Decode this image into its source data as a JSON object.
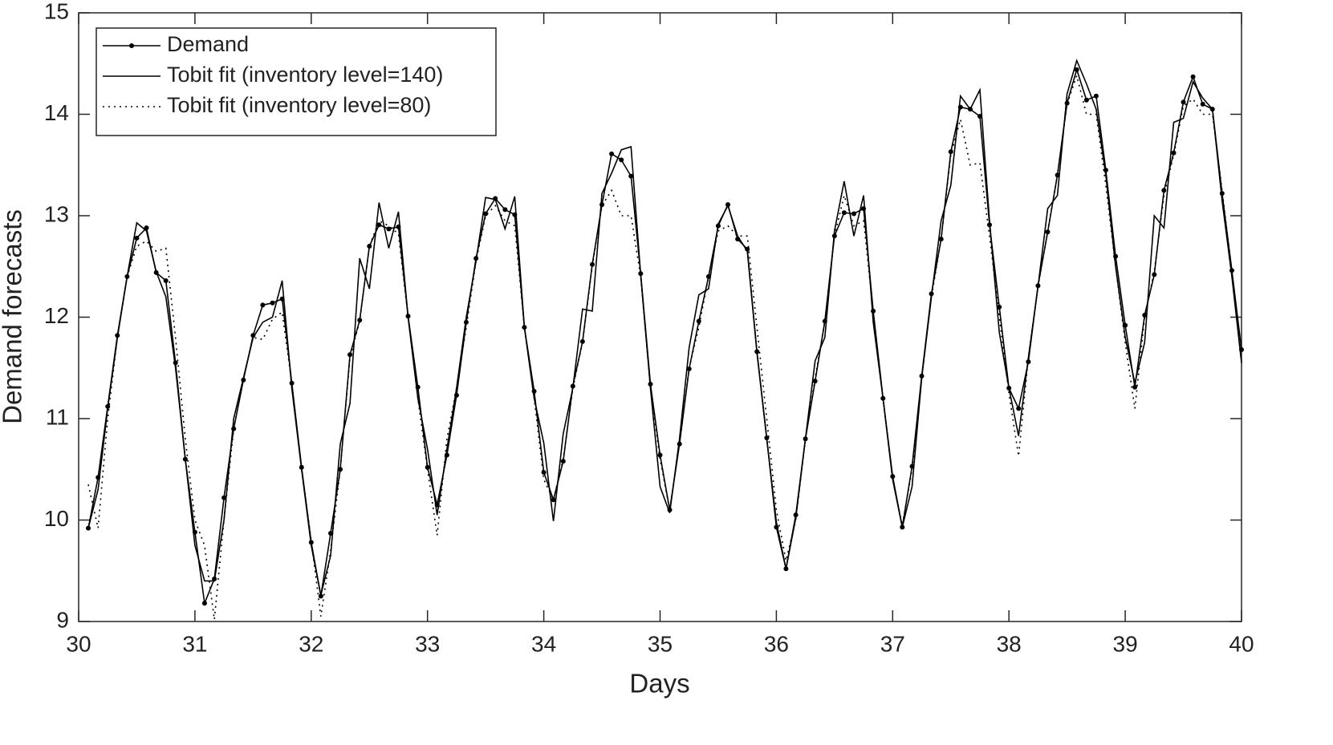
{
  "chart_data": {
    "type": "line",
    "x_label": "Days",
    "y_label": "Demand forecasts",
    "x": [
      30.083,
      30.167,
      30.25,
      30.333,
      30.417,
      30.5,
      30.583,
      30.667,
      30.75,
      30.833,
      30.917,
      31,
      31.083,
      31.167,
      31.25,
      31.333,
      31.417,
      31.5,
      31.583,
      31.667,
      31.75,
      31.833,
      31.917,
      32,
      32.083,
      32.167,
      32.25,
      32.333,
      32.417,
      32.5,
      32.583,
      32.667,
      32.75,
      32.833,
      32.917,
      33,
      33.083,
      33.167,
      33.25,
      33.333,
      33.417,
      33.5,
      33.583,
      33.667,
      33.75,
      33.833,
      33.917,
      34,
      34.083,
      34.167,
      34.25,
      34.333,
      34.417,
      34.5,
      34.583,
      34.667,
      34.75,
      34.833,
      34.917,
      35,
      35.083,
      35.167,
      35.25,
      35.333,
      35.417,
      35.5,
      35.583,
      35.667,
      35.75,
      35.833,
      35.917,
      36,
      36.083,
      36.167,
      36.25,
      36.333,
      36.417,
      36.5,
      36.583,
      36.667,
      36.75,
      36.833,
      36.917,
      37,
      37.083,
      37.167,
      37.25,
      37.333,
      37.417,
      37.5,
      37.583,
      37.667,
      37.75,
      37.833,
      37.917,
      38,
      38.083,
      38.167,
      38.25,
      38.333,
      38.417,
      38.5,
      38.583,
      38.667,
      38.75,
      38.833,
      38.917,
      39,
      39.083,
      39.167,
      39.25,
      39.333,
      39.417,
      39.5,
      39.583,
      39.667,
      39.75,
      39.833,
      39.917,
      40
    ],
    "series": [
      {
        "name": "Demand",
        "color": "#000000",
        "line_style": "solid",
        "marker": "dot",
        "values": [
          9.92,
          10.42,
          11.12,
          11.82,
          12.4,
          12.78,
          12.88,
          12.44,
          12.36,
          11.55,
          10.6,
          9.88,
          9.18,
          9.42,
          10.22,
          10.9,
          11.38,
          11.82,
          12.12,
          12.14,
          12.18,
          11.35,
          10.52,
          9.78,
          9.25,
          9.87,
          10.5,
          11.63,
          11.97,
          12.7,
          12.91,
          12.87,
          12.89,
          12.01,
          11.31,
          10.52,
          10.15,
          10.64,
          11.23,
          11.95,
          12.58,
          13.02,
          13.17,
          13.06,
          13.01,
          11.9,
          11.27,
          10.47,
          10.2,
          10.58,
          11.32,
          11.76,
          12.52,
          13.11,
          13.61,
          13.55,
          13.39,
          12.43,
          11.34,
          10.64,
          10.1,
          10.75,
          11.49,
          11.96,
          12.4,
          12.9,
          13.11,
          12.77,
          12.67,
          11.66,
          10.81,
          9.93,
          9.52,
          10.05,
          10.8,
          11.37,
          11.96,
          12.8,
          13.03,
          13.02,
          13.07,
          12.06,
          11.2,
          10.43,
          9.93,
          10.53,
          11.42,
          12.23,
          12.77,
          13.63,
          14.07,
          14.05,
          13.98,
          12.91,
          12.1,
          11.3,
          11.1,
          11.56,
          12.31,
          12.84,
          13.4,
          14.11,
          14.44,
          14.14,
          14.18,
          13.45,
          12.6,
          11.92,
          11.31,
          12.02,
          12.42,
          13.25,
          13.62,
          14.12,
          14.37,
          14.1,
          14.05,
          13.22,
          12.46,
          11.68
        ]
      },
      {
        "name": "Tobit fit (inventory level=140)",
        "color": "#000000",
        "line_style": "solid",
        "marker": "none",
        "values": [
          9.92,
          10.3,
          11.1,
          11.8,
          12.4,
          12.93,
          12.85,
          12.45,
          12.2,
          11.5,
          10.6,
          9.75,
          9.4,
          9.4,
          10.0,
          11.0,
          11.4,
          11.8,
          11.95,
          12.0,
          12.36,
          11.3,
          10.5,
          9.75,
          9.26,
          9.65,
          10.75,
          11.15,
          12.58,
          12.28,
          13.13,
          12.68,
          13.04,
          12.0,
          11.2,
          10.7,
          10.05,
          10.7,
          11.3,
          12.0,
          12.55,
          13.18,
          13.16,
          12.87,
          13.19,
          11.9,
          11.2,
          10.76,
          9.99,
          10.85,
          11.3,
          12.08,
          12.06,
          13.22,
          13.42,
          13.65,
          13.68,
          12.42,
          11.3,
          10.33,
          10.07,
          10.8,
          11.7,
          12.22,
          12.28,
          12.92,
          13.1,
          12.8,
          12.65,
          11.65,
          10.8,
          9.98,
          9.52,
          10.02,
          10.8,
          11.57,
          11.8,
          12.85,
          13.34,
          12.8,
          13.2,
          11.95,
          11.2,
          10.4,
          9.93,
          10.33,
          11.4,
          12.2,
          12.95,
          13.3,
          14.18,
          14.05,
          14.24,
          12.95,
          11.85,
          11.3,
          10.83,
          11.6,
          12.3,
          13.07,
          13.2,
          14.2,
          14.53,
          14.3,
          14.05,
          13.4,
          12.5,
          11.8,
          11.35,
          11.75,
          13.0,
          12.88,
          13.92,
          13.96,
          14.32,
          14.16,
          14.05,
          13.15,
          12.4,
          11.55
        ]
      },
      {
        "name": "Tobit fit (inventory level=80)",
        "color": "#000000",
        "line_style": "dotted",
        "marker": "none",
        "values": [
          10.35,
          9.92,
          11.0,
          11.8,
          12.4,
          12.7,
          12.75,
          12.65,
          12.68,
          11.8,
          10.8,
          10.0,
          9.75,
          9.02,
          10.0,
          10.9,
          11.4,
          11.8,
          11.78,
          11.98,
          12.05,
          11.35,
          10.5,
          9.8,
          9.05,
          9.7,
          10.5,
          11.6,
          11.96,
          12.7,
          12.95,
          12.9,
          12.82,
          12.0,
          11.2,
          10.5,
          9.85,
          10.8,
          11.3,
          11.9,
          12.55,
          13.0,
          13.1,
          12.95,
          12.9,
          11.9,
          11.2,
          10.4,
          10.2,
          10.6,
          11.3,
          11.75,
          12.5,
          13.1,
          13.25,
          13.0,
          13.0,
          12.4,
          11.3,
          10.6,
          10.1,
          10.75,
          11.5,
          11.9,
          12.4,
          12.85,
          12.9,
          12.8,
          12.8,
          11.9,
          11.0,
          10.1,
          9.6,
          10.0,
          10.8,
          11.4,
          11.96,
          12.8,
          13.2,
          12.9,
          12.95,
          12.05,
          11.2,
          10.4,
          9.95,
          10.5,
          11.4,
          12.2,
          12.77,
          13.6,
          13.95,
          13.5,
          13.52,
          12.8,
          12.0,
          11.25,
          10.63,
          11.6,
          12.3,
          12.85,
          13.4,
          14.1,
          14.38,
          14.0,
          14.0,
          13.3,
          12.5,
          11.75,
          11.1,
          12.0,
          12.45,
          13.2,
          13.6,
          14.08,
          14.15,
          14.0,
          14.0,
          13.25,
          12.45,
          11.55
        ]
      }
    ],
    "xlim": [
      30,
      40
    ],
    "ylim": [
      9,
      15
    ],
    "xticks": [
      30,
      31,
      32,
      33,
      34,
      35,
      36,
      37,
      38,
      39,
      40
    ],
    "yticks": [
      9,
      10,
      11,
      12,
      13,
      14,
      15
    ],
    "grid": false,
    "legend": "upper left"
  }
}
